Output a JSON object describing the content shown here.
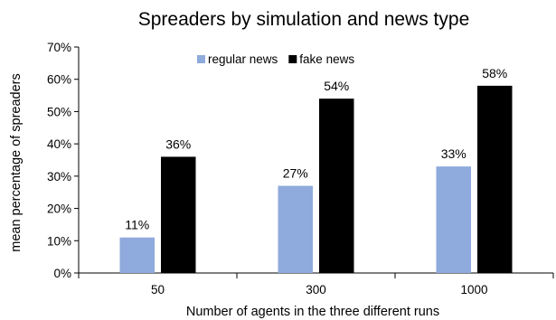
{
  "chart_data": {
    "type": "bar",
    "title": "Spreaders by simulation and news type",
    "xlabel": "Number of agents in the three different runs",
    "ylabel": "mean percentage of spreaders",
    "categories": [
      "50",
      "300",
      "1000"
    ],
    "series": [
      {
        "name": "regular news",
        "color": "#8faadc",
        "values": [
          11,
          27,
          33
        ],
        "labels": [
          "11%",
          "27%",
          "33%"
        ]
      },
      {
        "name": "fake news",
        "color": "#000000",
        "values": [
          36,
          54,
          58
        ],
        "labels": [
          "36%",
          "54%",
          "58%"
        ]
      }
    ],
    "ylim": [
      0,
      70
    ],
    "yticks": [
      0,
      10,
      20,
      30,
      40,
      50,
      60,
      70
    ],
    "ytick_labels": [
      "0%",
      "10%",
      "20%",
      "30%",
      "40%",
      "50%",
      "60%",
      "70%"
    ],
    "grid": false,
    "legend_position": "top-center"
  }
}
